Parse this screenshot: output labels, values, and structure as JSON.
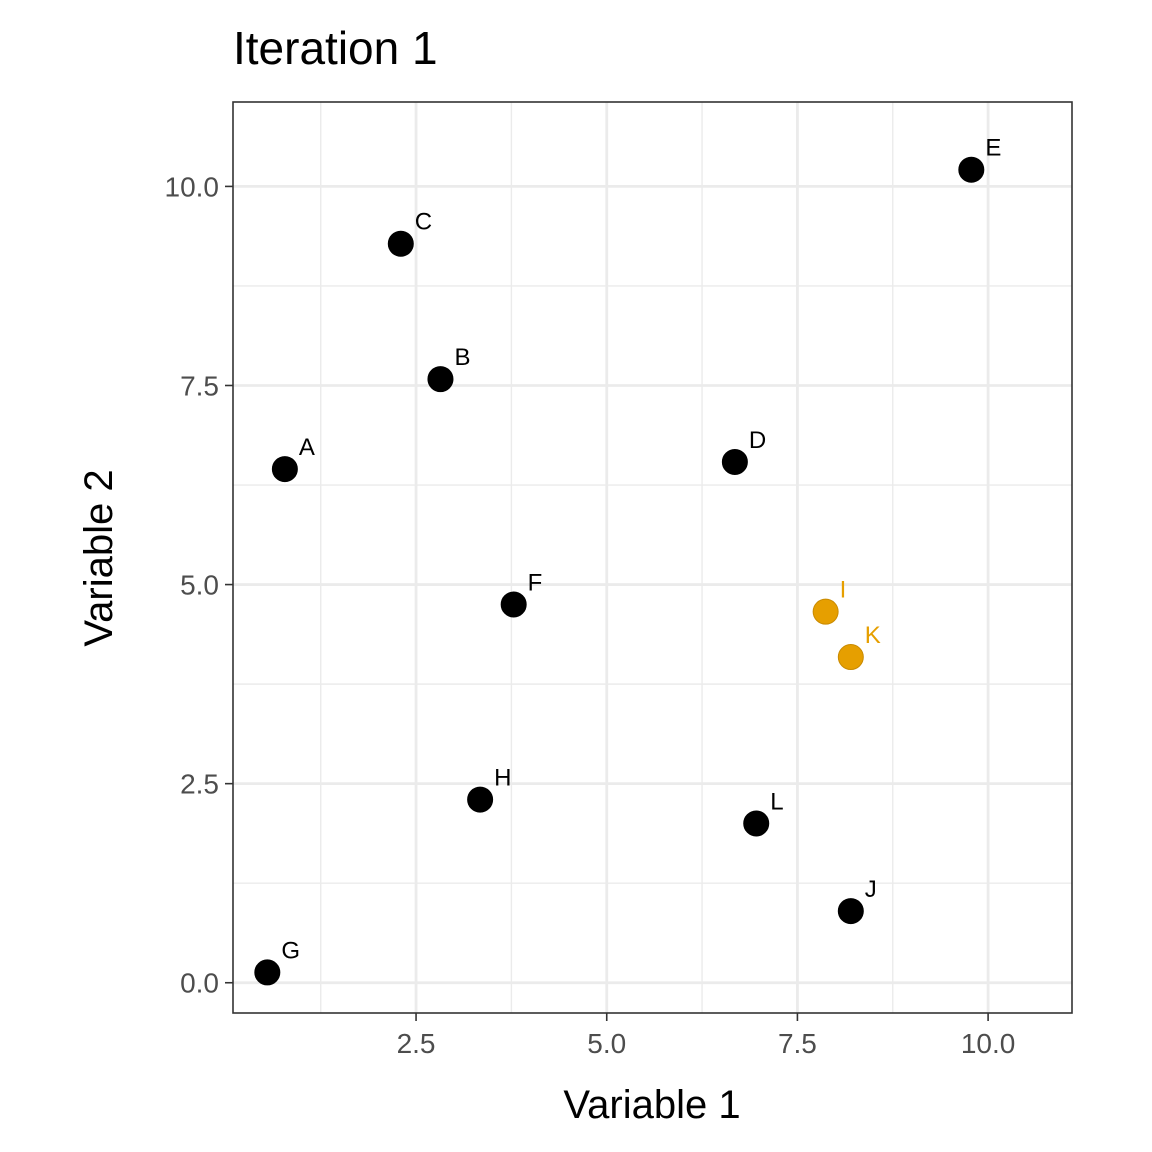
{
  "chart_data": {
    "type": "scatter",
    "title": "Iteration 1",
    "xlabel": "Variable 1",
    "ylabel": "Variable 2",
    "xlim": [
      0.1,
      11.1
    ],
    "ylim": [
      -0.38,
      11.06
    ],
    "x_ticks": [
      2.5,
      5.0,
      7.5,
      10.0
    ],
    "x_tick_labels": [
      "2.5",
      "5.0",
      "7.5",
      "10.0"
    ],
    "y_ticks": [
      0.0,
      2.5,
      5.0,
      7.5,
      10.0
    ],
    "y_tick_labels": [
      "0.0",
      "2.5",
      "5.0",
      "7.5",
      "10.0"
    ],
    "x_minor_ticks": [
      1.25,
      3.75,
      6.25,
      8.75
    ],
    "y_minor_ticks": [
      1.25,
      3.75,
      6.25,
      8.75
    ],
    "grid": true,
    "colors": {
      "default": "#000000",
      "highlight": "#E69F00"
    },
    "points": [
      {
        "label": "A",
        "x": 0.78,
        "y": 6.45,
        "group": "default"
      },
      {
        "label": "B",
        "x": 2.82,
        "y": 7.58,
        "group": "default"
      },
      {
        "label": "C",
        "x": 2.3,
        "y": 9.28,
        "group": "default"
      },
      {
        "label": "D",
        "x": 6.68,
        "y": 6.54,
        "group": "default"
      },
      {
        "label": "E",
        "x": 9.78,
        "y": 10.21,
        "group": "default"
      },
      {
        "label": "F",
        "x": 3.78,
        "y": 4.75,
        "group": "default"
      },
      {
        "label": "G",
        "x": 0.55,
        "y": 0.13,
        "group": "default"
      },
      {
        "label": "H",
        "x": 3.34,
        "y": 2.3,
        "group": "default"
      },
      {
        "label": "I",
        "x": 7.87,
        "y": 4.66,
        "group": "highlight"
      },
      {
        "label": "J",
        "x": 8.2,
        "y": 0.9,
        "group": "default"
      },
      {
        "label": "K",
        "x": 8.2,
        "y": 4.09,
        "group": "highlight"
      },
      {
        "label": "L",
        "x": 6.96,
        "y": 2.0,
        "group": "default"
      }
    ]
  }
}
